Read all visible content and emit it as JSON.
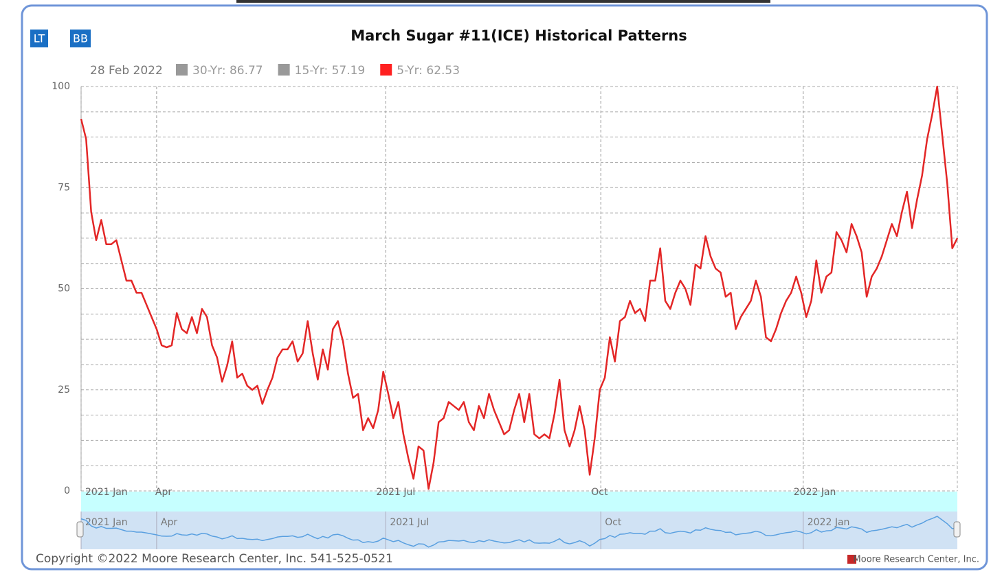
{
  "chart_data": {
    "type": "line",
    "title": "March Sugar #11(ICE) Historical Patterns",
    "buttons": [
      "LT",
      "BB"
    ],
    "legend": {
      "date": "28 Feb 2022",
      "items": [
        {
          "label": "30-Yr: 86.77",
          "color": "#999999"
        },
        {
          "label": "15-Yr: 57.19",
          "color": "#999999"
        },
        {
          "label": "5-Yr: 62.53",
          "color": "#ff2020"
        }
      ]
    },
    "series": [
      {
        "color": "#e32626",
        "values": [
          92,
          87,
          69,
          62,
          67,
          61,
          61,
          62,
          57,
          52,
          52,
          49,
          49,
          46,
          43,
          40,
          36,
          35.5,
          36,
          44,
          40,
          39,
          43,
          39,
          45,
          43,
          36,
          33,
          27,
          31,
          37,
          28,
          29,
          26,
          25,
          26,
          21.5,
          25,
          28,
          33,
          35,
          35,
          37,
          32,
          34,
          42,
          34,
          27.5,
          35,
          30,
          40,
          42,
          37,
          29,
          23,
          24,
          15,
          18,
          15.5,
          20,
          29.5,
          24,
          18,
          22,
          14,
          8,
          3,
          11,
          10,
          0.5,
          7,
          17,
          18,
          22,
          21,
          20,
          22,
          17,
          15,
          21,
          18,
          24,
          20,
          17,
          14,
          15,
          20,
          24,
          17,
          24,
          14,
          13,
          14,
          13,
          19,
          27.5,
          15,
          11,
          15,
          21,
          15,
          4,
          13,
          25,
          28,
          38,
          32,
          42,
          43,
          47,
          44,
          45,
          42,
          52,
          52,
          60,
          47,
          45,
          49,
          52,
          50,
          46,
          56,
          55,
          63,
          58,
          55,
          54,
          48,
          49,
          40,
          43,
          45,
          47,
          52,
          48,
          38,
          37,
          40,
          44,
          47,
          49,
          53,
          49,
          43,
          47,
          57,
          49,
          53,
          54,
          64,
          62,
          59,
          66,
          63,
          59,
          48,
          53,
          55,
          58,
          62,
          66,
          63,
          69,
          74,
          65,
          72,
          78,
          87,
          93,
          100,
          88,
          76,
          60,
          62.5
        ]
      }
    ],
    "xlim": [
      0,
      174
    ],
    "xticks": [
      {
        "value": 0,
        "label": "2021 Jan"
      },
      {
        "value": 15,
        "label": "Apr"
      },
      {
        "value": 60.5,
        "label": "2021 Jul"
      },
      {
        "value": 103.2,
        "label": "Oct"
      },
      {
        "value": 143.4,
        "label": "2022 Jan"
      }
    ],
    "ylim": [
      0,
      100
    ],
    "yticks": [
      0,
      25,
      50,
      75,
      100
    ],
    "grid": true,
    "copyright": "Copyright ©2022 Moore Research Center, Inc. 541-525-0521",
    "credit": "Moore Research Center, Inc."
  }
}
